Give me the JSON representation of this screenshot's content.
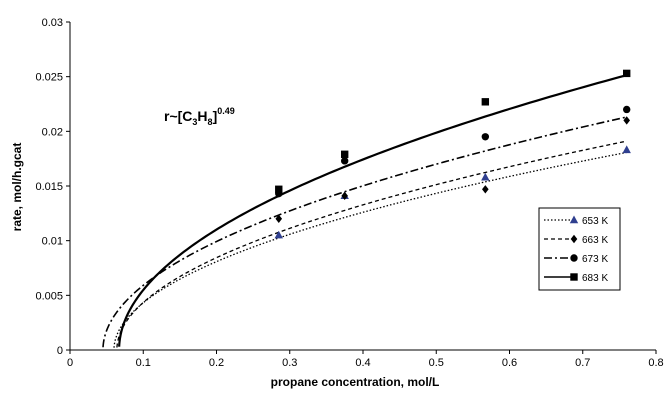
{
  "chart_data": {
    "type": "scatter",
    "title": "",
    "xlabel": "propane concentration, mol/L",
    "ylabel": "rate, mol/h.gcat",
    "xlim": [
      0,
      0.8
    ],
    "ylim": [
      0,
      0.03
    ],
    "x_ticks": [
      "0",
      "0.1",
      "0.2",
      "0.3",
      "0.4",
      "0.5",
      "0.6",
      "0.7",
      "0.8"
    ],
    "y_ticks": [
      "0",
      "0.005",
      "0.01",
      "0.015",
      "0.02",
      "0.025",
      "0.03"
    ],
    "x_tick_values": [
      0,
      0.1,
      0.2,
      0.3,
      0.4,
      0.5,
      0.6,
      0.7,
      0.8
    ],
    "y_tick_values": [
      0,
      0.005,
      0.01,
      0.015,
      0.02,
      0.025,
      0.03
    ],
    "grid": false,
    "legend_position": "right",
    "annotation": {
      "prefix": "r~[C",
      "sub1": "3",
      "mid": "H",
      "sub2": "8",
      "close": "]",
      "sup": "0.49"
    },
    "series": [
      {
        "name": "653 K",
        "marker": "triangle",
        "marker_color": "#2f3f8f",
        "line_style": "dotted",
        "x": [
          0.285,
          0.375,
          0.567,
          0.76
        ],
        "y": [
          0.0105,
          0.0141,
          0.0158,
          0.0183
        ],
        "fit": {
          "a": 0.0216,
          "b": 0.06
        }
      },
      {
        "name": "663 K",
        "marker": "diamond",
        "marker_color": "#000000",
        "line_style": "dashed",
        "x": [
          0.285,
          0.375,
          0.567,
          0.76
        ],
        "y": [
          0.012,
          0.0141,
          0.0147,
          0.021
        ],
        "fit": {
          "a": 0.0229,
          "b": 0.064
        }
      },
      {
        "name": "673 K",
        "marker": "circle",
        "marker_color": "#000000",
        "line_style": "dashdot",
        "x": [
          0.285,
          0.375,
          0.567,
          0.76
        ],
        "y": [
          0.0143,
          0.0173,
          0.0195,
          0.022
        ],
        "fit": {
          "a": 0.0252,
          "b": 0.045
        }
      },
      {
        "name": "683 K",
        "marker": "square",
        "marker_color": "#000000",
        "line_style": "solid",
        "x": [
          0.285,
          0.375,
          0.567,
          0.76
        ],
        "y": [
          0.0147,
          0.0179,
          0.0227,
          0.0253
        ],
        "fit": {
          "a": 0.0302,
          "b": 0.067
        }
      }
    ]
  }
}
